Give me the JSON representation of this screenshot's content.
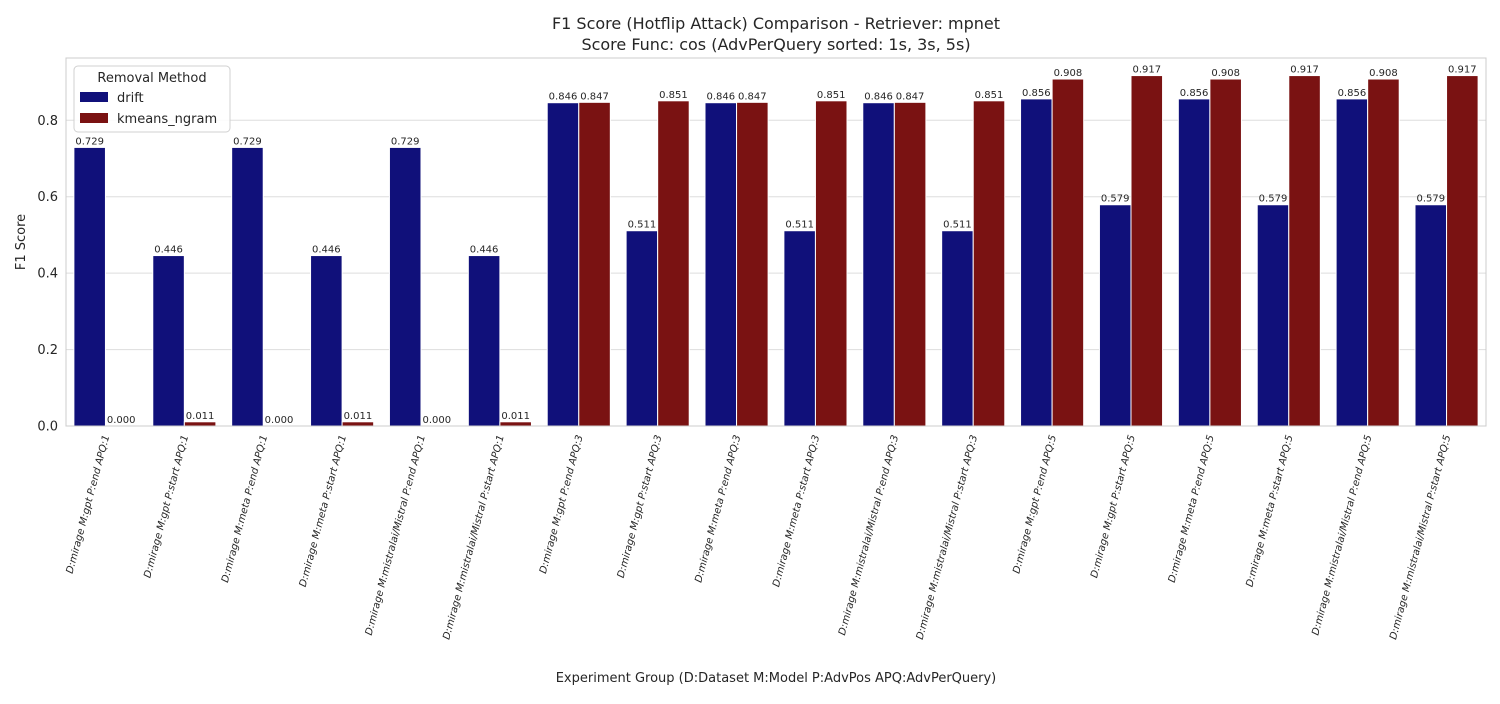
{
  "chart_data": {
    "type": "bar",
    "title_line1": "F1 Score (Hotflip Attack) Comparison - Retriever: mpnet",
    "title_line2": "Score Func: cos (AdvPerQuery sorted: 1s, 3s, 5s)",
    "xlabel": "Experiment Group (D:Dataset M:Model P:AdvPos APQ:AdvPerQuery)",
    "ylabel": "F1 Score",
    "ylim": [
      0,
      0.963
    ],
    "yticks": [
      0.0,
      0.2,
      0.4,
      0.6,
      0.8
    ],
    "ytick_labels": [
      "0.0",
      "0.2",
      "0.4",
      "0.6",
      "0.8"
    ],
    "grid": true,
    "legend": {
      "title": "Removal Method",
      "placement": "top-left"
    },
    "categories": [
      "D:mirage M:gpt P:end APQ:1",
      "D:mirage M:gpt P:start APQ:1",
      "D:mirage M:meta P:end APQ:1",
      "D:mirage M:meta P:start APQ:1",
      "D:mirage M:mistralai/Mistral P:end APQ:1",
      "D:mirage M:mistralai/Mistral P:start APQ:1",
      "D:mirage M:gpt P:end APQ:3",
      "D:mirage M:gpt P:start APQ:3",
      "D:mirage M:meta P:end APQ:3",
      "D:mirage M:meta P:start APQ:3",
      "D:mirage M:mistralai/Mistral P:end APQ:3",
      "D:mirage M:mistralai/Mistral P:start APQ:3",
      "D:mirage M:gpt P:end APQ:5",
      "D:mirage M:gpt P:start APQ:5",
      "D:mirage M:meta P:end APQ:5",
      "D:mirage M:meta P:start APQ:5",
      "D:mirage M:mistralai/Mistral P:end APQ:5",
      "D:mirage M:mistralai/Mistral P:start APQ:5"
    ],
    "series": [
      {
        "name": "drift",
        "color": "#10107a",
        "values": [
          0.729,
          0.446,
          0.729,
          0.446,
          0.729,
          0.446,
          0.846,
          0.511,
          0.846,
          0.511,
          0.846,
          0.511,
          0.856,
          0.579,
          0.856,
          0.579,
          0.856,
          0.579
        ],
        "labels": [
          "0.729",
          "0.446",
          "0.729",
          "0.446",
          "0.729",
          "0.446",
          "0.846",
          "0.511",
          "0.846",
          "0.511",
          "0.846",
          "0.511",
          "0.856",
          "0.579",
          "0.856",
          "0.579",
          "0.856",
          "0.579"
        ]
      },
      {
        "name": "kmeans_ngram",
        "color": "#7a1212",
        "values": [
          0.0,
          0.011,
          0.0,
          0.011,
          0.0,
          0.011,
          0.847,
          0.851,
          0.847,
          0.851,
          0.847,
          0.851,
          0.908,
          0.917,
          0.908,
          0.917,
          0.908,
          0.917
        ],
        "labels": [
          "0.000",
          "0.011",
          "0.000",
          "0.011",
          "0.000",
          "0.011",
          "0.847",
          "0.851",
          "0.847",
          "0.851",
          "0.847",
          "0.851",
          "0.908",
          "0.917",
          "0.908",
          "0.917",
          "0.908",
          "0.917"
        ]
      }
    ]
  }
}
